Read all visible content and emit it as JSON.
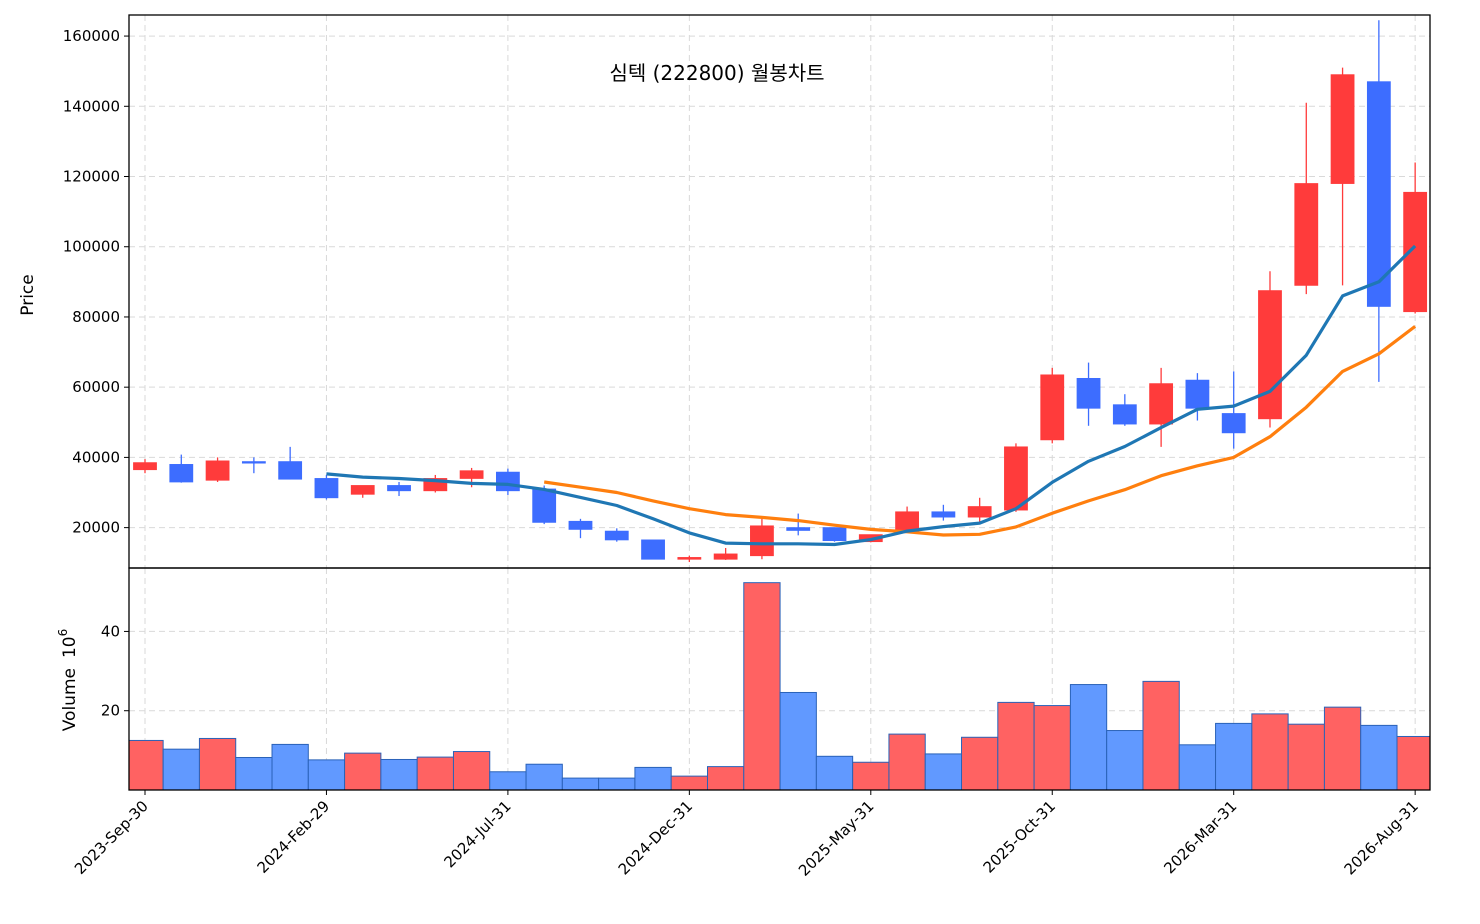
{
  "chart_data": {
    "type": "candlestick",
    "title": "심텍 (222800) 월봉차트",
    "ylabel": "Price",
    "volume_label": "Volume",
    "volume_unit_base": "10",
    "volume_unit_exp": "6",
    "ylim": [
      8500,
      166000
    ],
    "volume_ylim": [
      0,
      56
    ],
    "y_ticks": [
      20000,
      40000,
      60000,
      80000,
      100000,
      120000,
      140000,
      160000
    ],
    "volume_ticks": [
      20,
      40
    ],
    "x_ticks": [
      {
        "index": 0,
        "label": "2023-Sep-30"
      },
      {
        "index": 5,
        "label": "2024-Feb-29"
      },
      {
        "index": 10,
        "label": "2024-Jul-31"
      },
      {
        "index": 15,
        "label": "2024-Dec-31"
      },
      {
        "index": 20,
        "label": "2025-May-31"
      },
      {
        "index": 25,
        "label": "2025-Oct-31"
      },
      {
        "index": 30,
        "label": "2026-Mar-31"
      },
      {
        "index": 35,
        "label": "2026-Aug-31"
      }
    ],
    "grid": true,
    "colors": {
      "up": "#ff3b3b",
      "down": "#3d6dff",
      "vol_up": "#ff6262",
      "vol_down": "#6199ff",
      "vol_edge": "#2a62b8",
      "ma1": "#1f77b4",
      "ma2": "#ff7f0e",
      "grid": "#d9d9d9"
    },
    "candles": [
      {
        "o": 36500,
        "h": 39500,
        "l": 35500,
        "c": 38500
      },
      {
        "o": 38000,
        "h": 40800,
        "l": 32800,
        "c": 33000
      },
      {
        "o": 33500,
        "h": 40000,
        "l": 33000,
        "c": 39000
      },
      {
        "o": 38800,
        "h": 40000,
        "l": 35500,
        "c": 38500
      },
      {
        "o": 38800,
        "h": 43000,
        "l": 33700,
        "c": 33800
      },
      {
        "o": 34000,
        "h": 35000,
        "l": 28000,
        "c": 28500
      },
      {
        "o": 29500,
        "h": 32000,
        "l": 28500,
        "c": 32000
      },
      {
        "o": 32000,
        "h": 33000,
        "l": 29000,
        "c": 30500
      },
      {
        "o": 30500,
        "h": 35000,
        "l": 30000,
        "c": 34000
      },
      {
        "o": 34000,
        "h": 37000,
        "l": 31500,
        "c": 36200
      },
      {
        "o": 35800,
        "h": 36800,
        "l": 29300,
        "c": 30500
      },
      {
        "o": 31000,
        "h": 32000,
        "l": 21000,
        "c": 21500
      },
      {
        "o": 21800,
        "h": 22500,
        "l": 17000,
        "c": 19500
      },
      {
        "o": 19000,
        "h": 19800,
        "l": 16000,
        "c": 16500
      },
      {
        "o": 16500,
        "h": 16500,
        "l": 11000,
        "c": 11000
      },
      {
        "o": 11000,
        "h": 12000,
        "l": 10200,
        "c": 11500
      },
      {
        "o": 11000,
        "h": 14200,
        "l": 10800,
        "c": 12500
      },
      {
        "o": 12000,
        "h": 22500,
        "l": 11000,
        "c": 20500
      },
      {
        "o": 20000,
        "h": 24000,
        "l": 17800,
        "c": 19200
      },
      {
        "o": 20000,
        "h": 20000,
        "l": 16000,
        "c": 16300
      },
      {
        "o": 16000,
        "h": 18000,
        "l": 15800,
        "c": 18000
      },
      {
        "o": 19000,
        "h": 26000,
        "l": 18500,
        "c": 24500
      },
      {
        "o": 24500,
        "h": 26500,
        "l": 22000,
        "c": 23000
      },
      {
        "o": 23000,
        "h": 28500,
        "l": 21000,
        "c": 26000
      },
      {
        "o": 25000,
        "h": 44000,
        "l": 24500,
        "c": 43000
      },
      {
        "o": 45000,
        "h": 65500,
        "l": 44000,
        "c": 63500
      },
      {
        "o": 62500,
        "h": 67000,
        "l": 49000,
        "c": 54000
      },
      {
        "o": 55000,
        "h": 58000,
        "l": 49000,
        "c": 49500
      },
      {
        "o": 49500,
        "h": 65500,
        "l": 43000,
        "c": 61000
      },
      {
        "o": 62000,
        "h": 64000,
        "l": 50500,
        "c": 54000
      },
      {
        "o": 52500,
        "h": 64500,
        "l": 42500,
        "c": 47000
      },
      {
        "o": 51000,
        "h": 93000,
        "l": 48500,
        "c": 87500
      },
      {
        "o": 89000,
        "h": 141000,
        "l": 86500,
        "c": 118000
      },
      {
        "o": 118000,
        "h": 151000,
        "l": 89000,
        "c": 149000
      },
      {
        "o": 147000,
        "h": 164500,
        "l": 61500,
        "c": 83000
      },
      {
        "o": 81500,
        "h": 124000,
        "l": 81000,
        "c": 115500
      }
    ],
    "volumes": [
      12.5,
      10.3,
      13.0,
      8.2,
      11.5,
      7.6,
      9.3,
      7.7,
      8.3,
      9.7,
      4.6,
      6.5,
      3.0,
      3.0,
      5.7,
      3.5,
      5.9,
      52.3,
      24.6,
      8.5,
      7.0,
      14.1,
      9.1,
      13.3,
      22.1,
      21.3,
      26.6,
      15.0,
      27.4,
      11.4,
      16.8,
      19.2,
      16.6,
      20.9,
      16.3,
      13.5
    ],
    "ma1": [
      null,
      null,
      null,
      null,
      null,
      35300,
      34400,
      34000,
      33400,
      32600,
      32300,
      30900,
      28600,
      26300,
      22500,
      18500,
      15600,
      15400,
      15400,
      15200,
      16600,
      19000,
      20300,
      21300,
      25400,
      32900,
      38900,
      43100,
      48500,
      53700,
      54600,
      58800,
      69100,
      86000,
      90000,
      100200
    ],
    "ma2": [
      null,
      null,
      null,
      null,
      null,
      null,
      null,
      null,
      null,
      null,
      null,
      33000,
      31500,
      30000,
      27600,
      25400,
      23700,
      22900,
      22000,
      20700,
      19500,
      18800,
      17900,
      18100,
      20200,
      24100,
      27600,
      30800,
      34800,
      37600,
      40000,
      45900,
      54300,
      64500,
      69500,
      77300
    ]
  }
}
